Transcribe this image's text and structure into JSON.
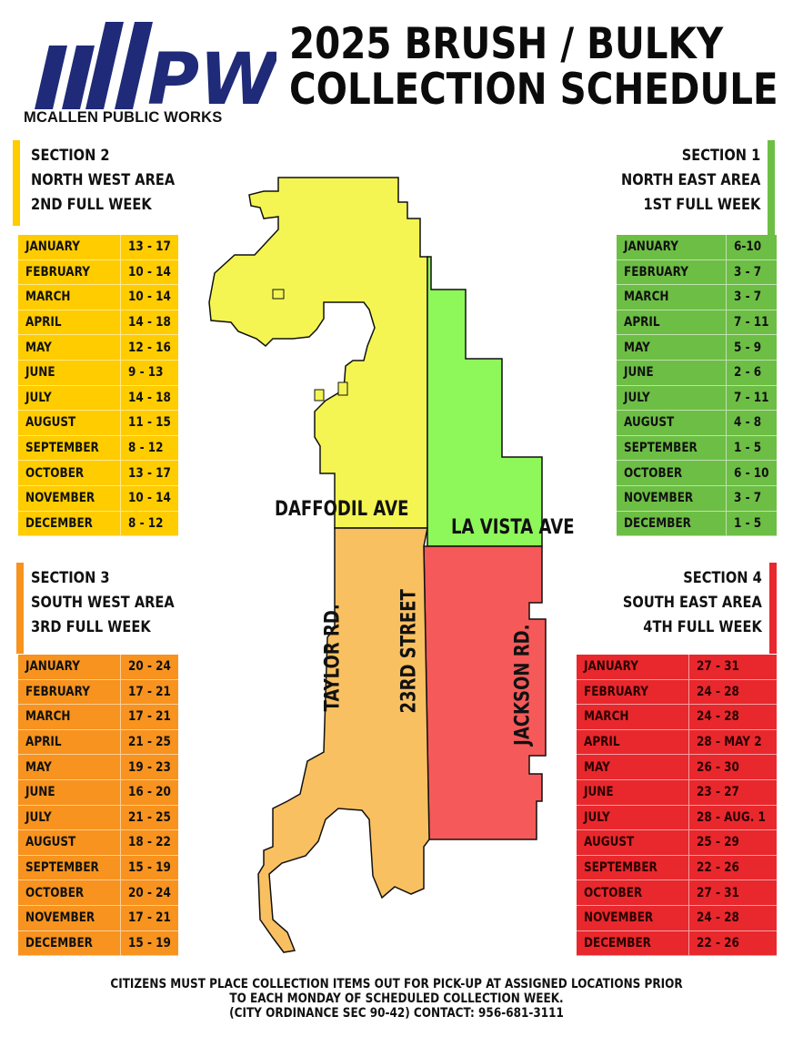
{
  "header": {
    "logo_text": "PW",
    "logo_caption": "MCALLEN PUBLIC WORKS",
    "title_line1": "2025 BRUSH / BULKY",
    "title_line2": "COLLECTION SCHEDULE"
  },
  "colors": {
    "section1": "#6dbe45",
    "section2": "#ffcc00",
    "section3": "#f7931e",
    "section4": "#e8282d",
    "logo": "#1f2a78"
  },
  "sections": {
    "section2": {
      "title": "SECTION 2",
      "area": "NORTH WEST AREA",
      "week": "2ND FULL WEEK",
      "rows": [
        {
          "month": "JANUARY",
          "dates": "13 - 17"
        },
        {
          "month": "FEBRUARY",
          "dates": "10 - 14"
        },
        {
          "month": "MARCH",
          "dates": "10 - 14"
        },
        {
          "month": "APRIL",
          "dates": "14 - 18"
        },
        {
          "month": "MAY",
          "dates": "12 - 16"
        },
        {
          "month": "JUNE",
          "dates": "9 - 13"
        },
        {
          "month": "JULY",
          "dates": "14 - 18"
        },
        {
          "month": "AUGUST",
          "dates": "11 - 15"
        },
        {
          "month": "SEPTEMBER",
          "dates": "8 - 12"
        },
        {
          "month": "OCTOBER",
          "dates": "13 - 17"
        },
        {
          "month": "NOVEMBER",
          "dates": "10 - 14"
        },
        {
          "month": "DECEMBER",
          "dates": "8 - 12"
        }
      ]
    },
    "section1": {
      "title": "SECTION 1",
      "area": "NORTH EAST AREA",
      "week": "1ST FULL WEEK",
      "rows": [
        {
          "month": "JANUARY",
          "dates": "6-10"
        },
        {
          "month": "FEBRUARY",
          "dates": "3 - 7"
        },
        {
          "month": "MARCH",
          "dates": "3 - 7"
        },
        {
          "month": "APRIL",
          "dates": "7 - 11"
        },
        {
          "month": "MAY",
          "dates": "5 - 9"
        },
        {
          "month": "JUNE",
          "dates": "2 - 6"
        },
        {
          "month": "JULY",
          "dates": "7 - 11"
        },
        {
          "month": "AUGUST",
          "dates": "4 - 8"
        },
        {
          "month": "SEPTEMBER",
          "dates": "1 - 5"
        },
        {
          "month": "OCTOBER",
          "dates": "6 - 10"
        },
        {
          "month": "NOVEMBER",
          "dates": "3 - 7"
        },
        {
          "month": "DECEMBER",
          "dates": "1 - 5"
        }
      ]
    },
    "section3": {
      "title": "SECTION 3",
      "area": "SOUTH WEST AREA",
      "week": "3RD FULL WEEK",
      "rows": [
        {
          "month": "JANUARY",
          "dates": "20 - 24"
        },
        {
          "month": "FEBRUARY",
          "dates": "17 - 21"
        },
        {
          "month": "MARCH",
          "dates": "17 - 21"
        },
        {
          "month": "APRIL",
          "dates": "21 - 25"
        },
        {
          "month": "MAY",
          "dates": "19 - 23"
        },
        {
          "month": "JUNE",
          "dates": "16 - 20"
        },
        {
          "month": "JULY",
          "dates": "21 - 25"
        },
        {
          "month": "AUGUST",
          "dates": "18 - 22"
        },
        {
          "month": "SEPTEMBER",
          "dates": "15 - 19"
        },
        {
          "month": "OCTOBER",
          "dates": "20 - 24"
        },
        {
          "month": "NOVEMBER",
          "dates": "17 - 21"
        },
        {
          "month": "DECEMBER",
          "dates": "15 - 19"
        }
      ]
    },
    "section4": {
      "title": "SECTION 4",
      "area": "SOUTH EAST AREA",
      "week": "4TH FULL WEEK",
      "rows": [
        {
          "month": "JANUARY",
          "dates": "27 - 31"
        },
        {
          "month": "FEBRUARY",
          "dates": "24 - 28"
        },
        {
          "month": "MARCH",
          "dates": "24 - 28"
        },
        {
          "month": "APRIL",
          "dates": "28 - MAY 2"
        },
        {
          "month": "MAY",
          "dates": "26 - 30"
        },
        {
          "month": "JUNE",
          "dates": "23 - 27"
        },
        {
          "month": "JULY",
          "dates": "28 - AUG. 1"
        },
        {
          "month": "AUGUST",
          "dates": "25 - 29"
        },
        {
          "month": "SEPTEMBER",
          "dates": "22 - 26"
        },
        {
          "month": "OCTOBER",
          "dates": "27 - 31"
        },
        {
          "month": "NOVEMBER",
          "dates": "24 - 28"
        },
        {
          "month": "DECEMBER",
          "dates": "22 - 26"
        }
      ]
    }
  },
  "map_labels": {
    "daffodil": "DAFFODIL AVE",
    "lavista": "LA VISTA AVE",
    "taylor": "TAYLOR RD.",
    "street23": "23RD STREET",
    "jackson": "JACKSON RD."
  },
  "footer": {
    "line1": "CITIZENS MUST PLACE COLLECTION ITEMS OUT FOR PICK-UP AT ASSIGNED LOCATIONS PRIOR",
    "line2": "TO EACH MONDAY OF SCHEDULED COLLECTION WEEK.",
    "line3": "(CITY ORDINANCE SEC 90-42) CONTACT: 956-681-3111"
  }
}
